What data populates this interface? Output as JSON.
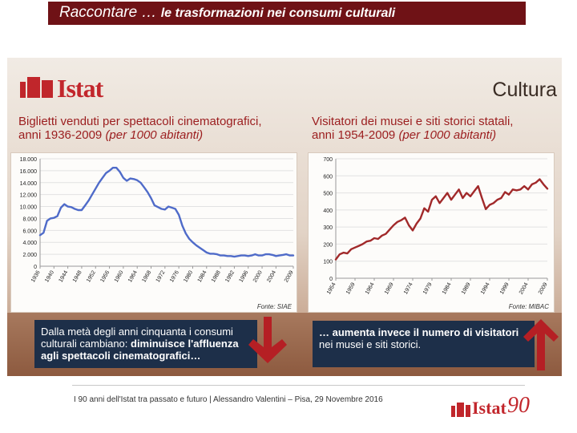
{
  "header": {
    "title_main": "Raccontare … ",
    "title_sub": "le trasformazioni nei consumi culturali"
  },
  "slide": {
    "logo_text": "Istat",
    "section_label": "Cultura",
    "left_title_line1": "Biglietti venduti per spettacoli cinematografici,",
    "left_title_line2_plain": "anni 1936-2009 ",
    "left_title_line2_italic": "(per 1000 abitanti)",
    "right_title_line1": "Visitatori dei musei e siti storici statali,",
    "right_title_line2_plain": "anni 1954-2009 ",
    "right_title_line2_italic": "(per 1000 abitanti)",
    "left_source": "Fonte: SIAE",
    "right_source": "Fonte: MIBAC",
    "left_note_plain1": "Dalla metà degli anni cinquanta i consumi culturali cambiano: ",
    "left_note_bold": "diminuisce l'affluenza agli spettacoli cinematografici…",
    "right_note_bold": "… aumenta invece il numero di visitatori",
    "right_note_plain": "nei musei e siti storici."
  },
  "footer": {
    "text": "I 90 anni dell'Istat tra passato e futuro | Alessandro Valentini – Pisa, 29 Novembre 2016",
    "logo_word": "Istat",
    "logo_number": "90"
  },
  "colors": {
    "header_bg": "#6f1216",
    "brand_red": "#c2262c",
    "cinema_line": "#4f6bc9",
    "museum_line": "#a1292a",
    "note_bg": "#1d2f49"
  },
  "chart_data": [
    {
      "type": "line",
      "series": [
        {
          "x": [
            1936,
            1937,
            1938,
            1939,
            1940,
            1941,
            1942,
            1943,
            1944,
            1945,
            1946,
            1947,
            1948,
            1949,
            1950,
            1951,
            1952,
            1953,
            1954,
            1955,
            1956,
            1957,
            1958,
            1959,
            1960,
            1961,
            1962,
            1963,
            1964,
            1965,
            1966,
            1967,
            1968,
            1969,
            1970,
            1971,
            1972,
            1973,
            1974,
            1975,
            1976,
            1977,
            1978,
            1979,
            1980,
            1981,
            1982,
            1983,
            1984,
            1985,
            1986,
            1987,
            1988,
            1989,
            1990,
            1991,
            1992,
            1993,
            1994,
            1995,
            1996,
            1997,
            1998,
            1999,
            2000,
            2001,
            2002,
            2003,
            2004,
            2005,
            2006,
            2007,
            2008,
            2009
          ],
          "values": [
            5200,
            5600,
            7600,
            8000,
            8100,
            8400,
            9800,
            10400,
            10000,
            9900,
            9600,
            9400,
            9400,
            10200,
            11000,
            12000,
            13000,
            14000,
            14800,
            15600,
            16000,
            16500,
            16500,
            15800,
            14800,
            14300,
            14700,
            14600,
            14400,
            14000,
            13200,
            12400,
            11400,
            10200,
            9900,
            9600,
            9500,
            10000,
            9800,
            9600,
            8600,
            6800,
            5500,
            4600,
            4000,
            3500,
            3100,
            2700,
            2300,
            2100,
            2100,
            2000,
            1800,
            1800,
            1700,
            1700,
            1600,
            1700,
            1800,
            1800,
            1700,
            1800,
            2000,
            1800,
            1800,
            2000,
            2000,
            1900,
            1700,
            1800,
            1900,
            2000,
            1800,
            1800
          ]
        }
      ],
      "ylim": [
        0,
        18000
      ],
      "yticks": [
        "18.000",
        "16.000",
        "14.000",
        "12.000",
        "10.000",
        "8.000",
        "6.000",
        "4.000",
        "2.000",
        "0"
      ],
      "xticks": [
        "1936",
        "1940",
        "1944",
        "1948",
        "1952",
        "1956",
        "1960",
        "1964",
        "1968",
        "1972",
        "1976",
        "1980",
        "1984",
        "1988",
        "1992",
        "1996",
        "2000",
        "2004",
        "2009"
      ],
      "grid": true
    },
    {
      "type": "line",
      "series": [
        {
          "x": [
            1954,
            1955,
            1956,
            1957,
            1958,
            1959,
            1960,
            1961,
            1962,
            1963,
            1964,
            1965,
            1966,
            1967,
            1968,
            1969,
            1970,
            1971,
            1972,
            1973,
            1974,
            1975,
            1976,
            1977,
            1978,
            1979,
            1980,
            1981,
            1982,
            1983,
            1984,
            1985,
            1986,
            1987,
            1988,
            1989,
            1990,
            1991,
            1992,
            1993,
            1994,
            1995,
            1996,
            1997,
            1998,
            1999,
            2000,
            2001,
            2002,
            2003,
            2004,
            2005,
            2006,
            2007,
            2008,
            2009
          ],
          "values": [
            110,
            140,
            150,
            145,
            170,
            180,
            190,
            200,
            215,
            220,
            235,
            230,
            250,
            260,
            285,
            310,
            330,
            340,
            355,
            310,
            280,
            320,
            350,
            410,
            390,
            460,
            480,
            440,
            470,
            500,
            460,
            490,
            520,
            470,
            500,
            480,
            510,
            540,
            470,
            405,
            430,
            440,
            460,
            470,
            505,
            490,
            520,
            515,
            520,
            540,
            520,
            550,
            560,
            580,
            550,
            525
          ]
        }
      ],
      "ylim": [
        0,
        700
      ],
      "yticks": [
        "700",
        "600",
        "500",
        "400",
        "300",
        "200",
        "100",
        "0"
      ],
      "xticks": [
        "1954",
        "1959",
        "1964",
        "1969",
        "1974",
        "1979",
        "1984",
        "1989",
        "1994",
        "1999",
        "2004",
        "2009"
      ],
      "grid": true
    }
  ]
}
